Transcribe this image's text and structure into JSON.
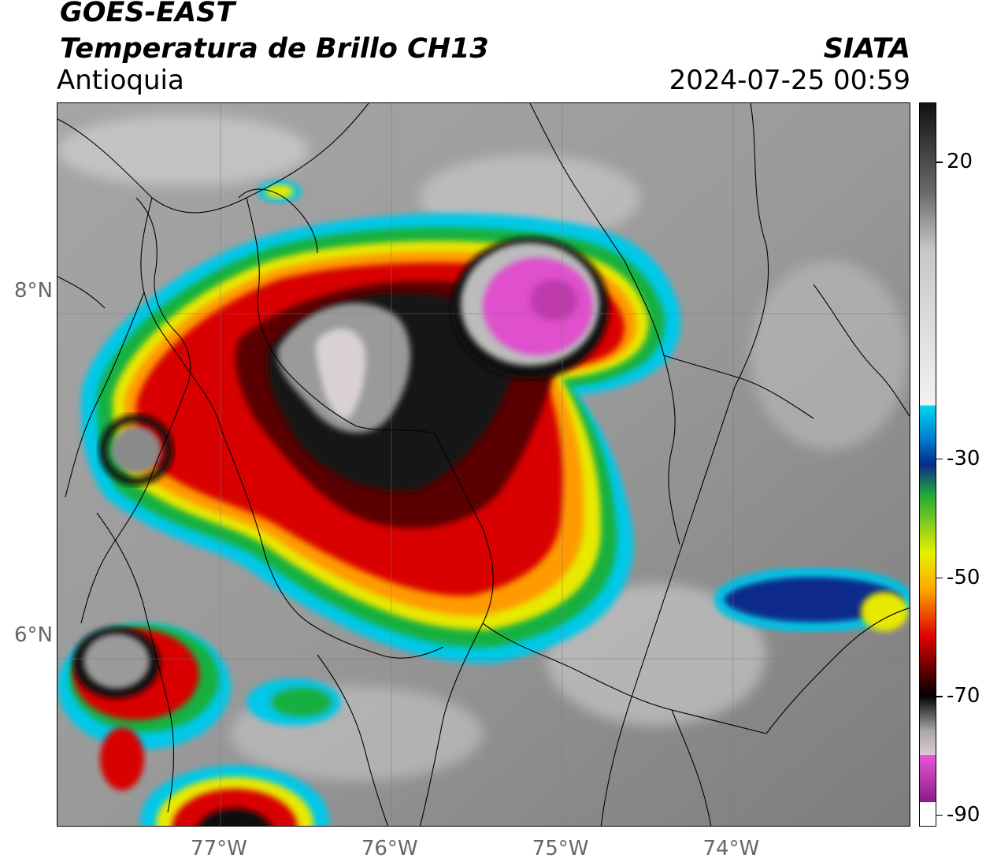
{
  "header": {
    "satellite": "GOES-EAST",
    "product": "Temperatura de Brillo CH13",
    "region": "Antioquia",
    "organization": "SIATA",
    "timestamp": "2024-07-25 00:59"
  },
  "map": {
    "extent": {
      "lon_min": -77.95,
      "lon_max": -72.95,
      "lat_min": 4.9,
      "lat_max": 9.1
    },
    "lat_ticks": [
      {
        "value": 8,
        "label": "8°N"
      },
      {
        "value": 6,
        "label": "6°N"
      }
    ],
    "lon_ticks": [
      {
        "value": -77,
        "label": "77°W"
      },
      {
        "value": -76,
        "label": "76°W"
      },
      {
        "value": -75,
        "label": "75°W"
      },
      {
        "value": -74,
        "label": "74°W"
      }
    ]
  },
  "colorbar": {
    "unit_range": [
      -92,
      30
    ],
    "ticks": [
      {
        "value": 20,
        "label": "20"
      },
      {
        "value": -30,
        "label": "-30"
      },
      {
        "value": -50,
        "label": "-50"
      },
      {
        "value": -70,
        "label": "-70"
      },
      {
        "value": -90,
        "label": "-90"
      }
    ],
    "colors": {
      "warm_top": "#111111",
      "light": "#f2f2f2",
      "cyan": "#00d8f0",
      "blue": "#0a2a8a",
      "green": "#1fa83a",
      "yellow": "#e8f000",
      "orange": "#ffa800",
      "red": "#e00000",
      "dark_red": "#5a0000",
      "black": "#000000",
      "grey": "#a8a8a8",
      "pink": "#ee55d8",
      "purple": "#8a1a8a"
    }
  }
}
